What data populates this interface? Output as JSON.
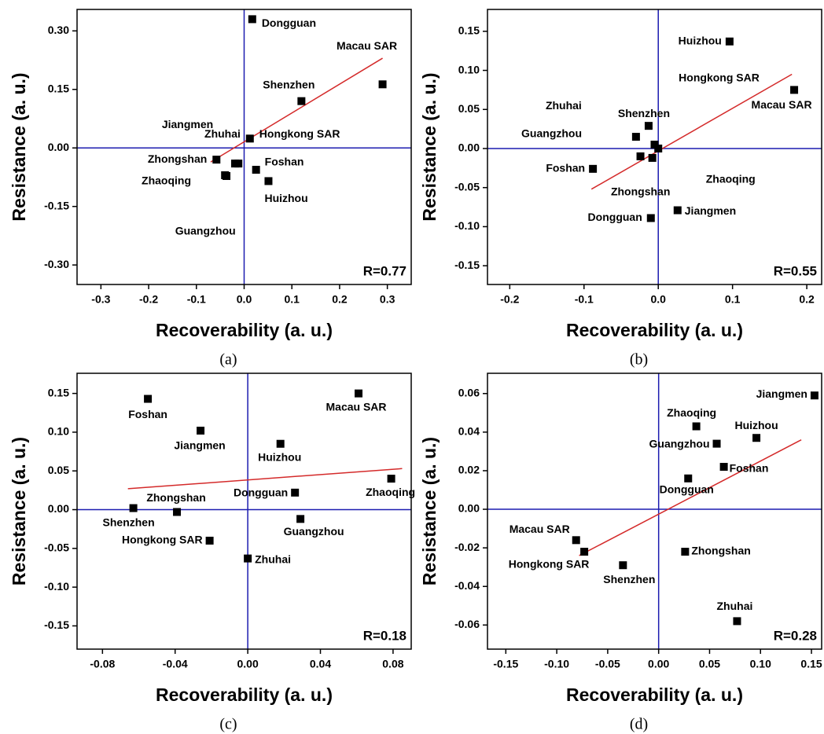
{
  "chart_data": [
    {
      "type": "scatter",
      "panel_label": "(a)",
      "x_label": "Recoverability (a. u.)",
      "y_label": "Resistance (a. u.)",
      "xlim": [
        -0.35,
        0.35
      ],
      "xticks": [
        -0.3,
        -0.2,
        -0.1,
        {
          "value": 0,
          "label": "0.0"
        },
        0.1,
        0.2,
        0.3
      ],
      "ylim": [
        -0.35,
        0.355
      ],
      "yticks": [
        {
          "value": -0.3,
          "label": "-0.30"
        },
        {
          "value": -0.15,
          "label": "-0.15"
        },
        {
          "value": 0,
          "label": "0.00"
        },
        {
          "value": 0.15,
          "label": "0.15"
        },
        {
          "value": 0.3,
          "label": "0.30"
        }
      ],
      "point_labels": [
        "Dongguan",
        "Macau SAR",
        "Shenzhen",
        "Hongkong  SAR",
        "Zhongshan",
        "Zhuhai",
        "Jiangmen",
        "Zhaoqing",
        "Guangzhou",
        "Foshan",
        "Huizhou"
      ],
      "x": [
        0.017,
        0.29,
        0.12,
        0.012,
        -0.058,
        -0.019,
        -0.012,
        -0.037,
        -0.04,
        0.025,
        0.051
      ],
      "values": [
        0.33,
        0.163,
        0.12,
        0.024,
        -0.03,
        -0.04,
        -0.04,
        -0.072,
        -0.07,
        -0.056,
        -0.085
      ],
      "color": "#000000",
      "zero_line_color": "#1c1cb0",
      "fit_line": {
        "x": [
          -0.07,
          0.29
        ],
        "values": [
          -0.036,
          0.23
        ],
        "color": "#d42a2a"
      },
      "annotation": "R=0.77"
    },
    {
      "type": "scatter",
      "panel_label": "(b)",
      "x_label": "Recoverability (a. u.)",
      "y_label": "Resistance (a. u.)",
      "xlim": [
        -0.23,
        0.22
      ],
      "xticks": [
        -0.2,
        -0.1,
        {
          "value": 0,
          "label": "0.0"
        },
        0.1,
        0.2
      ],
      "ylim": [
        -0.174,
        0.178
      ],
      "yticks": [
        {
          "value": -0.15,
          "label": "-0.15"
        },
        {
          "value": -0.1,
          "label": "-0.10"
        },
        {
          "value": -0.05,
          "label": "-0.05"
        },
        {
          "value": 0,
          "label": "0.00"
        },
        {
          "value": 0.05,
          "label": "0.05"
        },
        {
          "value": 0.1,
          "label": "0.10"
        },
        {
          "value": 0.15,
          "label": "0.15"
        }
      ],
      "point_labels": [
        "Huizhou",
        "Macau SAR",
        "Shenzhen",
        "Zhuhai",
        "Hongkong SAR",
        "Guangzhou",
        "Zhongshan",
        "Zhaoqing",
        "Foshan",
        "Dongguan",
        "Jiangmen"
      ],
      "x": [
        0.096,
        0.183,
        -0.013,
        -0.03,
        -0.005,
        -0.024,
        -0.008,
        0.0,
        -0.088,
        -0.01,
        0.026
      ],
      "values": [
        0.137,
        0.075,
        0.029,
        0.015,
        0.005,
        -0.01,
        -0.012,
        0.0,
        -0.026,
        -0.089,
        -0.079
      ],
      "color": "#000000",
      "zero_line_color": "#1c1cb0",
      "fit_line": {
        "x": [
          -0.09,
          0.18
        ],
        "values": [
          -0.052,
          0.095
        ],
        "color": "#d42a2a"
      },
      "annotation": "R=0.55"
    },
    {
      "type": "scatter",
      "panel_label": "(c)",
      "x_label": "Recoverability (a. u.)",
      "y_label": "Resistance (a. u.)",
      "xlim": [
        -0.094,
        0.09
      ],
      "xticks": [
        -0.08,
        -0.04,
        {
          "value": 0,
          "label": "0.00"
        },
        {
          "value": 0.04,
          "label": "0.04"
        },
        {
          "value": 0.08,
          "label": "0.08"
        }
      ],
      "ylim": [
        -0.18,
        0.176
      ],
      "yticks": [
        {
          "value": -0.15,
          "label": "-0.15"
        },
        {
          "value": -0.1,
          "label": "-0.10"
        },
        {
          "value": -0.05,
          "label": "-0.05"
        },
        {
          "value": 0,
          "label": "0.00"
        },
        {
          "value": 0.05,
          "label": "0.05"
        },
        {
          "value": 0.1,
          "label": "0.10"
        },
        {
          "value": 0.15,
          "label": "0.15"
        }
      ],
      "point_labels": [
        "Foshan",
        "Macau SAR",
        "Jiangmen",
        "Huizhou",
        "Zhaoqing",
        "Dongguan",
        "Shenzhen",
        "Zhongshan",
        "Guangzhou",
        "Hongkong SAR",
        "Zhuhai"
      ],
      "x": [
        -0.055,
        0.061,
        -0.026,
        0.018,
        0.079,
        0.026,
        -0.063,
        -0.039,
        0.029,
        -0.021,
        0.0
      ],
      "values": [
        0.143,
        0.15,
        0.102,
        0.085,
        0.04,
        0.022,
        0.002,
        -0.003,
        -0.012,
        -0.04,
        -0.063
      ],
      "color": "#000000",
      "zero_line_color": "#1c1cb0",
      "fit_line": {
        "x": [
          -0.066,
          0.085
        ],
        "values": [
          0.027,
          0.053
        ],
        "color": "#d42a2a"
      },
      "annotation": "R=0.18"
    },
    {
      "type": "scatter",
      "panel_label": "(d)",
      "x_label": "Recoverability (a. u.)",
      "y_label": "Resistance (a. u.)",
      "xlim": [
        -0.168,
        0.16
      ],
      "xticks": [
        -0.15,
        {
          "value": -0.1,
          "label": "-0.10"
        },
        -0.05,
        {
          "value": 0,
          "label": "0.00"
        },
        0.05,
        {
          "value": 0.1,
          "label": "0.10"
        },
        0.15
      ],
      "ylim": [
        -0.0725,
        0.0705
      ],
      "yticks": [
        {
          "value": -0.06,
          "label": "-0.06"
        },
        {
          "value": -0.04,
          "label": "-0.04"
        },
        {
          "value": -0.02,
          "label": "-0.02"
        },
        {
          "value": 0,
          "label": "0.00"
        },
        {
          "value": 0.02,
          "label": "0.02"
        },
        {
          "value": 0.04,
          "label": "0.04"
        },
        {
          "value": 0.06,
          "label": "0.06"
        }
      ],
      "point_labels": [
        "Jiangmen",
        "Zhaoqing",
        "Huizhou",
        "Guangzhou",
        "Foshan",
        "Dongguan",
        "Macau SAR",
        "Hongkong SAR",
        "Shenzhen",
        "Zhongshan",
        "Zhuhai"
      ],
      "x": [
        0.153,
        0.037,
        0.096,
        0.057,
        0.064,
        0.029,
        -0.081,
        -0.073,
        -0.035,
        0.026,
        0.077
      ],
      "values": [
        0.059,
        0.043,
        0.037,
        0.034,
        0.022,
        0.016,
        -0.016,
        -0.022,
        -0.029,
        -0.022,
        -0.058
      ],
      "color": "#000000",
      "zero_line_color": "#1c1cb0",
      "fit_line": {
        "x": [
          -0.078,
          0.14
        ],
        "values": [
          -0.024,
          0.036
        ],
        "color": "#d42a2a"
      },
      "annotation": "R=0.28"
    }
  ]
}
